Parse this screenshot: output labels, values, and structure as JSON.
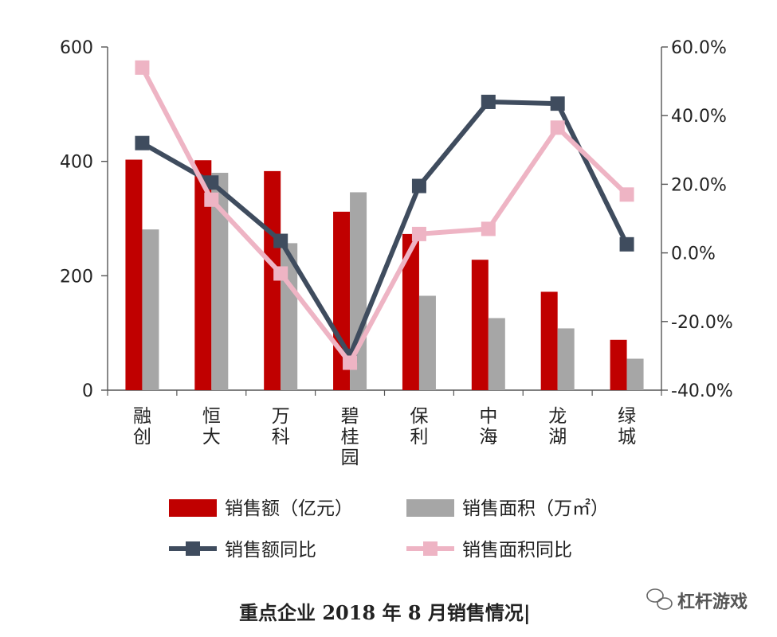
{
  "chart_data": {
    "type": "bar",
    "categories": [
      "融创",
      "恒大",
      "万科",
      "碧桂园",
      "保利",
      "中海",
      "龙湖",
      "绿城"
    ],
    "category_display": [
      [
        "融",
        "创"
      ],
      [
        "恒",
        "大"
      ],
      [
        "万",
        "科"
      ],
      [
        "碧",
        "桂",
        "园"
      ],
      [
        "保",
        "利"
      ],
      [
        "中",
        "海"
      ],
      [
        "龙",
        "湖"
      ],
      [
        "绿",
        "城"
      ]
    ],
    "left_axis": {
      "ylim": [
        0,
        600
      ],
      "ticks": [
        "0",
        "200",
        "400",
        "600"
      ],
      "tick_values": [
        0,
        200,
        400,
        600
      ]
    },
    "right_axis": {
      "ylim": [
        -40,
        60
      ],
      "ticks": [
        "-40.0%",
        "-20.0%",
        "0.0%",
        "20.0%",
        "40.0%",
        "60.0%"
      ],
      "tick_values": [
        -40,
        -20,
        0,
        20,
        40,
        60
      ]
    },
    "series": [
      {
        "name": "销售额（亿元）",
        "type": "bar",
        "axis": "left",
        "color": "#c00000",
        "values": [
          403,
          402,
          383,
          312,
          273,
          228,
          172,
          88
        ]
      },
      {
        "name": "销售面积（万㎡）",
        "type": "bar",
        "axis": "left",
        "color": "#a6a6a6",
        "values": [
          281,
          380,
          257,
          346,
          165,
          126,
          108,
          55
        ]
      },
      {
        "name": "销售额同比",
        "type": "line",
        "axis": "right",
        "color": "#3f4c5e",
        "marker": "square",
        "values": [
          32,
          20.5,
          3.5,
          -30,
          19.5,
          44,
          43.5,
          2.5
        ]
      },
      {
        "name": "销售面积同比",
        "type": "line",
        "axis": "right",
        "color": "#eeb4c4",
        "marker": "square",
        "values": [
          54,
          15.5,
          -6,
          -32,
          5.5,
          7,
          36.5,
          17
        ]
      }
    ],
    "grid": false,
    "legend_position": "bottom"
  },
  "caption": "重点企业 2018 年 8 月销售情况|",
  "watermark": {
    "text": "杠杆游戏",
    "icon": "wechat-icon"
  }
}
